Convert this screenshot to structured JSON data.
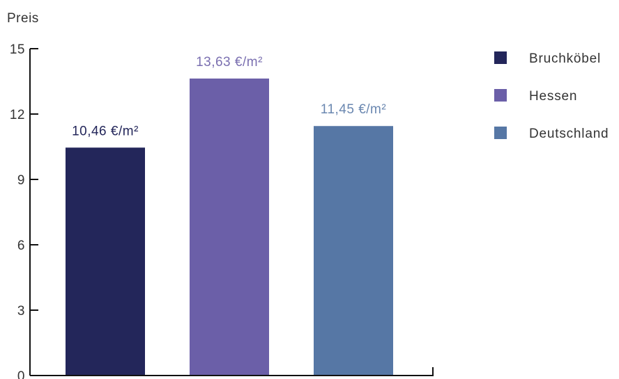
{
  "chart_data": {
    "type": "bar",
    "categories": [
      "Bruchköbel",
      "Hessen",
      "Deutschland"
    ],
    "values": [
      10.46,
      13.63,
      11.45
    ],
    "data_labels": [
      "10,46 €/m²",
      "13,63 €/m²",
      "11,45 €/m²"
    ],
    "colors": [
      "#23265a",
      "#6b5fa8",
      "#5677a5"
    ],
    "label_colors": [
      "#23265a",
      "#7a6fb0",
      "#6a87b0"
    ],
    "ylabel": "Preis",
    "xlabel": "",
    "ylim": [
      0,
      15
    ],
    "yticks": [
      0,
      3,
      6,
      9,
      12,
      15
    ],
    "grid": false,
    "legend_position": "right",
    "legend": [
      "Bruchköbel",
      "Hessen",
      "Deutschland"
    ]
  }
}
